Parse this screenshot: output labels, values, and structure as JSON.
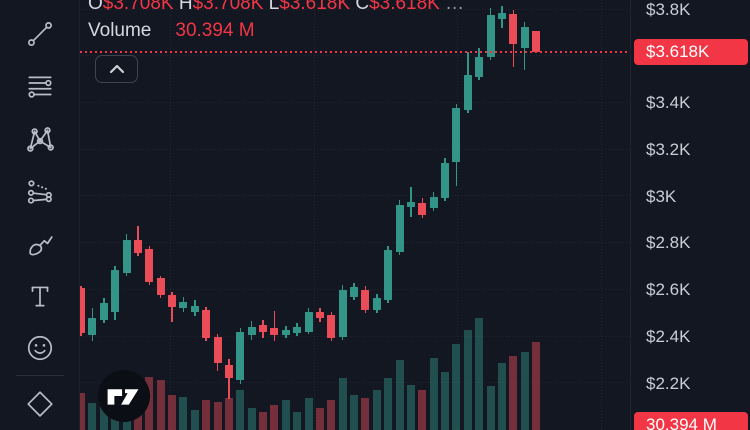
{
  "colors": {
    "background": "#131722",
    "bullish": "#339488",
    "bearish": "#ea4d58",
    "accent_red": "#f23645",
    "axis_text": "#c9cdd6",
    "legend_text": "#d6d9e0",
    "muted_text": "#9598a1",
    "volume_bull": "rgba(51,148,136,0.45)",
    "volume_bear": "rgba(234,77,88,0.45)"
  },
  "toolbar": {
    "items": [
      {
        "icon": "trend-line-icon"
      },
      {
        "icon": "fib-retracement-icon"
      },
      {
        "icon": "xabcd-pattern-icon"
      },
      {
        "icon": "prediction-measure-icon"
      },
      {
        "icon": "brush-icon"
      },
      {
        "icon": "text-icon"
      },
      {
        "icon": "emoji-icon"
      },
      {
        "icon": "measure-diamond-icon-partial"
      }
    ]
  },
  "legend": {
    "row1": {
      "o_label": "O",
      "o_value": "$3.708K",
      "h_label": "H",
      "h_value": "$3.708K",
      "l_label": "L",
      "l_value": "$3.618K",
      "c_label": "C",
      "c_value": "$3.618K",
      "more": "…"
    },
    "row2": {
      "label": "Volume",
      "value": "30.394 M"
    }
  },
  "collapse_button": {
    "icon": "chevron-up-icon"
  },
  "price_axis": {
    "labels": [
      {
        "text": "$3.8K",
        "price": 3.8
      },
      {
        "text": "$3.4K",
        "price": 3.4
      },
      {
        "text": "$3.2K",
        "price": 3.2
      },
      {
        "text": "$3K",
        "price": 3.0
      },
      {
        "text": "$2.8K",
        "price": 2.8
      },
      {
        "text": "$2.6K",
        "price": 2.6
      },
      {
        "text": "$2.4K",
        "price": 2.4
      },
      {
        "text": "$2.2K",
        "price": 2.2
      }
    ],
    "price_badge": {
      "text": "$3.618K",
      "price": 3.618
    },
    "volume_badge": {
      "text": "30.394 M"
    }
  },
  "chart_data": {
    "type": "candlestick",
    "price_unit": "USD thousands (K)",
    "volume_unit": "M (millions of units)",
    "grid": true,
    "price_gridlines": [
      3.8,
      3.6,
      3.4,
      3.2,
      3.0,
      2.8,
      2.6,
      2.4,
      2.2
    ],
    "current_price": 3.618,
    "current_volume_m": 30.394,
    "last_candle_ohlc": {
      "open": "$3.708K",
      "high": "$3.708K",
      "low": "$3.618K",
      "close": "$3.618K"
    },
    "candles": [
      {
        "o": 2.606,
        "h": 2.615,
        "l": 2.401,
        "c": 2.414,
        "v": 12.8
      },
      {
        "o": 2.405,
        "h": 2.521,
        "l": 2.38,
        "c": 2.478,
        "v": 9.3
      },
      {
        "o": 2.47,
        "h": 2.564,
        "l": 2.457,
        "c": 2.542,
        "v": 10.0
      },
      {
        "o": 2.504,
        "h": 2.701,
        "l": 2.47,
        "c": 2.683,
        "v": 14.2
      },
      {
        "o": 2.671,
        "h": 2.838,
        "l": 2.658,
        "c": 2.812,
        "v": 14.5
      },
      {
        "o": 2.812,
        "h": 2.872,
        "l": 2.743,
        "c": 2.756,
        "v": 15.5
      },
      {
        "o": 2.773,
        "h": 2.786,
        "l": 2.619,
        "c": 2.632,
        "v": 18.3
      },
      {
        "o": 2.649,
        "h": 2.658,
        "l": 2.564,
        "c": 2.577,
        "v": 17.3
      },
      {
        "o": 2.577,
        "h": 2.589,
        "l": 2.461,
        "c": 2.525,
        "v": 12.1
      },
      {
        "o": 2.521,
        "h": 2.568,
        "l": 2.504,
        "c": 2.547,
        "v": 11.4
      },
      {
        "o": 2.504,
        "h": 2.555,
        "l": 2.487,
        "c": 2.529,
        "v": 6.9
      },
      {
        "o": 2.512,
        "h": 2.525,
        "l": 2.38,
        "c": 2.393,
        "v": 10.4
      },
      {
        "o": 2.397,
        "h": 2.41,
        "l": 2.251,
        "c": 2.285,
        "v": 9.7
      },
      {
        "o": 2.277,
        "h": 2.303,
        "l": 2.132,
        "c": 2.221,
        "v": 11.1
      },
      {
        "o": 2.213,
        "h": 2.435,
        "l": 2.196,
        "c": 2.418,
        "v": 13.8
      },
      {
        "o": 2.405,
        "h": 2.465,
        "l": 2.384,
        "c": 2.44,
        "v": 7.6
      },
      {
        "o": 2.448,
        "h": 2.47,
        "l": 2.393,
        "c": 2.418,
        "v": 6.2
      },
      {
        "o": 2.435,
        "h": 2.508,
        "l": 2.38,
        "c": 2.405,
        "v": 8.6
      },
      {
        "o": 2.405,
        "h": 2.444,
        "l": 2.393,
        "c": 2.427,
        "v": 10.4
      },
      {
        "o": 2.414,
        "h": 2.457,
        "l": 2.401,
        "c": 2.44,
        "v": 6.2
      },
      {
        "o": 2.418,
        "h": 2.521,
        "l": 2.41,
        "c": 2.504,
        "v": 11.1
      },
      {
        "o": 2.504,
        "h": 2.521,
        "l": 2.461,
        "c": 2.478,
        "v": 7.6
      },
      {
        "o": 2.491,
        "h": 2.504,
        "l": 2.38,
        "c": 2.393,
        "v": 10.4
      },
      {
        "o": 2.397,
        "h": 2.619,
        "l": 2.384,
        "c": 2.598,
        "v": 18.0
      },
      {
        "o": 2.568,
        "h": 2.628,
        "l": 2.555,
        "c": 2.611,
        "v": 12.1
      },
      {
        "o": 2.598,
        "h": 2.615,
        "l": 2.5,
        "c": 2.512,
        "v": 11.1
      },
      {
        "o": 2.512,
        "h": 2.581,
        "l": 2.5,
        "c": 2.564,
        "v": 13.8
      },
      {
        "o": 2.555,
        "h": 2.786,
        "l": 2.542,
        "c": 2.769,
        "v": 18.0
      },
      {
        "o": 2.76,
        "h": 2.983,
        "l": 2.748,
        "c": 2.962,
        "v": 24.2
      },
      {
        "o": 2.953,
        "h": 3.038,
        "l": 2.91,
        "c": 2.974,
        "v": 15.5
      },
      {
        "o": 2.97,
        "h": 2.991,
        "l": 2.906,
        "c": 2.919,
        "v": 13.8
      },
      {
        "o": 2.949,
        "h": 3.017,
        "l": 2.936,
        "c": 2.996,
        "v": 24.9
      },
      {
        "o": 2.991,
        "h": 3.163,
        "l": 2.979,
        "c": 3.141,
        "v": 20.0
      },
      {
        "o": 3.146,
        "h": 3.394,
        "l": 3.043,
        "c": 3.377,
        "v": 29.7
      },
      {
        "o": 3.368,
        "h": 3.616,
        "l": 3.355,
        "c": 3.518,
        "v": 34.5
      },
      {
        "o": 3.509,
        "h": 3.633,
        "l": 3.496,
        "c": 3.595,
        "v": 38.7
      },
      {
        "o": 3.595,
        "h": 3.804,
        "l": 3.582,
        "c": 3.774,
        "v": 15.2
      },
      {
        "o": 3.757,
        "h": 3.813,
        "l": 3.719,
        "c": 3.783,
        "v": 23.1
      },
      {
        "o": 3.779,
        "h": 3.796,
        "l": 3.552,
        "c": 3.65,
        "v": 25.6
      },
      {
        "o": 3.633,
        "h": 3.744,
        "l": 3.539,
        "c": 3.723,
        "v": 26.9
      },
      {
        "o": 3.708,
        "h": 3.708,
        "l": 3.618,
        "c": 3.618,
        "v": 30.394
      }
    ]
  }
}
